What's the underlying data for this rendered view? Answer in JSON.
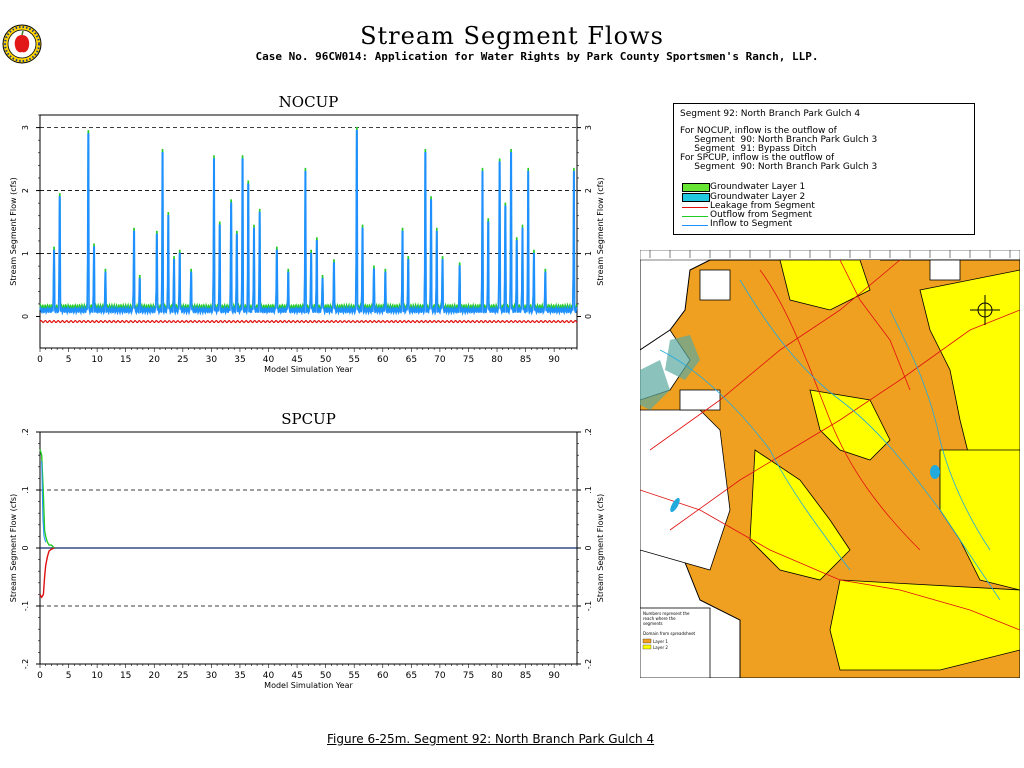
{
  "header": {
    "title": "Stream Segment Flows",
    "subtitle": "Case No. 96CW014: Application for Water Rights by Park County Sportsmen's Ranch, LLP."
  },
  "caption": "Figure 6-25m.  Segment 92: North Branch Park Gulch 4",
  "legend": {
    "title": "Segment 92: North Branch Park Gulch 4",
    "notes": [
      "For NOCUP, inflow is the outflow of",
      "     Segment  90: North Branch Park Gulch 3",
      "     Segment  91: Bypass Ditch",
      "For SPCUP, inflow is the outflow of",
      "     Segment  90: North Branch Park Gulch 3"
    ],
    "items": [
      {
        "label": "Groundwater Layer 1",
        "kind": "swatch",
        "color": "#66e633"
      },
      {
        "label": "Groundwater Layer 2",
        "kind": "swatch",
        "color": "#22c8e0"
      },
      {
        "label": "Leakage from Segment",
        "kind": "line",
        "color": "#e01010"
      },
      {
        "label": "Outflow from Segment",
        "kind": "line",
        "color": "#22cc22"
      },
      {
        "label": "Inflow to Segment",
        "kind": "line",
        "color": "#1e90ff"
      }
    ]
  },
  "colors": {
    "leakage": "#e01010",
    "outflow": "#22cc22",
    "inflow": "#1e90ff",
    "zero_line_spcup": "#0a2a6e",
    "map_orange": "#f0a020",
    "map_yellow": "#ffff00"
  },
  "map": {
    "icon": "site-map-thumbnail",
    "inset_lines": [
      "Numbers represent the",
      "reach where the",
      "segments",
      "Domain from spreadsheet",
      "Layer 1",
      "Layer 2"
    ]
  },
  "chart_data": [
    {
      "type": "line",
      "title": "NOCUP",
      "xlabel": "Model Simulation Year",
      "ylabel": "Stream Segment Flow (cfs)",
      "xlim": [
        0,
        94
      ],
      "ylim": [
        -0.5,
        3.2
      ],
      "yticks": [
        0,
        1,
        2,
        3
      ],
      "xticks": [
        0,
        5,
        10,
        15,
        20,
        25,
        30,
        35,
        40,
        45,
        50,
        55,
        60,
        65,
        70,
        75,
        80,
        85,
        90
      ],
      "grid": "dashed horizontal at y=1,2,3",
      "baseline": {
        "inflow": 0.1,
        "outflow": 0.15,
        "leakage": -0.08
      },
      "series": [
        {
          "name": "Inflow to Segment",
          "peaks": [
            [
              2,
              1.05
            ],
            [
              3,
              1.9
            ],
            [
              8,
              2.9
            ],
            [
              9,
              1.1
            ],
            [
              11,
              0.7
            ],
            [
              16,
              1.35
            ],
            [
              17,
              0.6
            ],
            [
              20,
              1.3
            ],
            [
              21,
              2.6
            ],
            [
              22,
              1.6
            ],
            [
              23,
              0.9
            ],
            [
              24,
              1.0
            ],
            [
              26,
              0.7
            ],
            [
              30,
              2.5
            ],
            [
              31,
              1.45
            ],
            [
              33,
              1.8
            ],
            [
              34,
              1.3
            ],
            [
              35,
              2.5
            ],
            [
              36,
              2.1
            ],
            [
              37,
              1.4
            ],
            [
              38,
              1.65
            ],
            [
              41,
              1.05
            ],
            [
              43,
              0.7
            ],
            [
              46,
              2.3
            ],
            [
              47,
              1.0
            ],
            [
              48,
              1.2
            ],
            [
              49,
              0.6
            ],
            [
              51,
              0.85
            ],
            [
              55,
              2.95
            ],
            [
              56,
              1.4
            ],
            [
              58,
              0.75
            ],
            [
              60,
              0.7
            ],
            [
              63,
              1.35
            ],
            [
              64,
              0.9
            ],
            [
              67,
              2.6
            ],
            [
              68,
              1.85
            ],
            [
              69,
              1.35
            ],
            [
              70,
              0.9
            ],
            [
              73,
              0.8
            ],
            [
              77,
              2.3
            ],
            [
              78,
              1.5
            ],
            [
              80,
              2.45
            ],
            [
              81,
              1.75
            ],
            [
              82,
              2.6
            ],
            [
              83,
              1.2
            ],
            [
              84,
              1.4
            ],
            [
              85,
              2.3
            ],
            [
              86,
              1.0
            ],
            [
              88,
              0.7
            ],
            [
              93,
              2.3
            ],
            [
              94,
              0.85
            ]
          ]
        },
        {
          "name": "Outflow from Segment",
          "note": "tracks inflow slightly above"
        },
        {
          "name": "Leakage from Segment",
          "note": "approx -0.08 constant"
        }
      ]
    },
    {
      "type": "line",
      "title": "SPCUP",
      "xlabel": "Model Simulation Year",
      "ylabel": "Stream Segment Flow (cfs)",
      "xlim": [
        0,
        94
      ],
      "ylim": [
        -2,
        2
      ],
      "yticks": [
        -2,
        -1,
        0,
        1,
        2
      ],
      "yticklabels": [
        "-.2",
        "-.1",
        "0",
        ".1",
        ".2"
      ],
      "xticks": [
        0,
        5,
        10,
        15,
        20,
        25,
        30,
        35,
        40,
        45,
        50,
        55,
        60,
        65,
        70,
        75,
        80,
        85,
        90
      ],
      "grid": "dashed horizontal at y=-1,1",
      "series": [
        {
          "name": "Outflow from Segment",
          "x": [
            0,
            0.3,
            0.6,
            0.8,
            1.0,
            1.3,
            1.6,
            2.0,
            2.5
          ],
          "y": [
            1.7,
            1.6,
            0.9,
            0.3,
            0.2,
            0.1,
            0.05,
            0.05,
            0
          ]
        },
        {
          "name": "Leakage from Segment",
          "x": [
            0,
            0.3,
            0.6,
            0.8,
            1.0,
            1.3,
            1.6,
            2.0,
            2.5
          ],
          "y": [
            -0.8,
            -0.85,
            -0.8,
            -0.5,
            -0.3,
            -0.15,
            -0.05,
            -0.02,
            0
          ]
        },
        {
          "name": "Inflow to Segment",
          "x": [
            0,
            94
          ],
          "y": [
            0,
            0
          ]
        }
      ]
    }
  ]
}
